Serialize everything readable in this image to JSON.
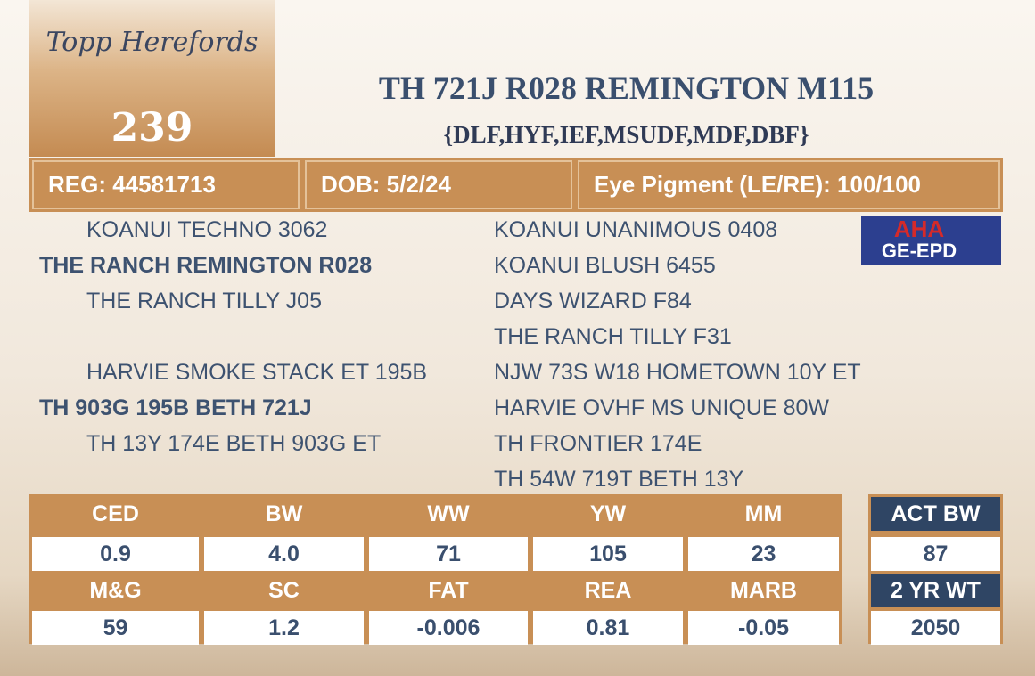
{
  "logo": {
    "brand": "Topp Herefords",
    "lot": "239"
  },
  "title": "TH 721J R028 REMINGTON M115",
  "subtitle": "{DLF,HYF,IEF,MSUDF,MDF,DBF}",
  "info": [
    "REG: 44581713",
    "DOB: 5/2/24",
    "Eye Pigment (LE/RE): 100/100"
  ],
  "badge": {
    "top": "AHA",
    "bottom": "GE-EPD"
  },
  "pedigree": {
    "sire": {
      "name": "THE RANCH REMINGTON R028",
      "sire": "KOANUI TECHNO 3062",
      "dam": "THE RANCH TILLY J05"
    },
    "dam": {
      "name": "TH 903G 195B BETH 721J",
      "sire": "HARVIE SMOKE STACK ET 195B",
      "dam": "TH 13Y 174E BETH 903G ET"
    },
    "grandparents": [
      "KOANUI UNANIMOUS 0408",
      "KOANUI BLUSH 6455",
      "DAYS WIZARD F84",
      "THE RANCH TILLY F31",
      "NJW 73S W18 HOMETOWN 10Y ET",
      "HARVIE OVHF MS UNIQUE 80W",
      "TH FRONTIER 174E",
      "TH 54W 719T BETH 13Y"
    ]
  },
  "epds": {
    "headers": [
      [
        "CED",
        "BW",
        "WW",
        "YW",
        "MM"
      ],
      [
        "M&G",
        "SC",
        "FAT",
        "REA",
        "MARB"
      ]
    ],
    "values": [
      [
        "0.9",
        "4.0",
        "71",
        "105",
        "23"
      ],
      [
        "59",
        "1.2",
        "-0.006",
        "0.81",
        "-0.05"
      ]
    ]
  },
  "performance": {
    "headers": [
      "ACT BW",
      "2 YR WT"
    ],
    "values": [
      "87",
      "2050"
    ]
  }
}
